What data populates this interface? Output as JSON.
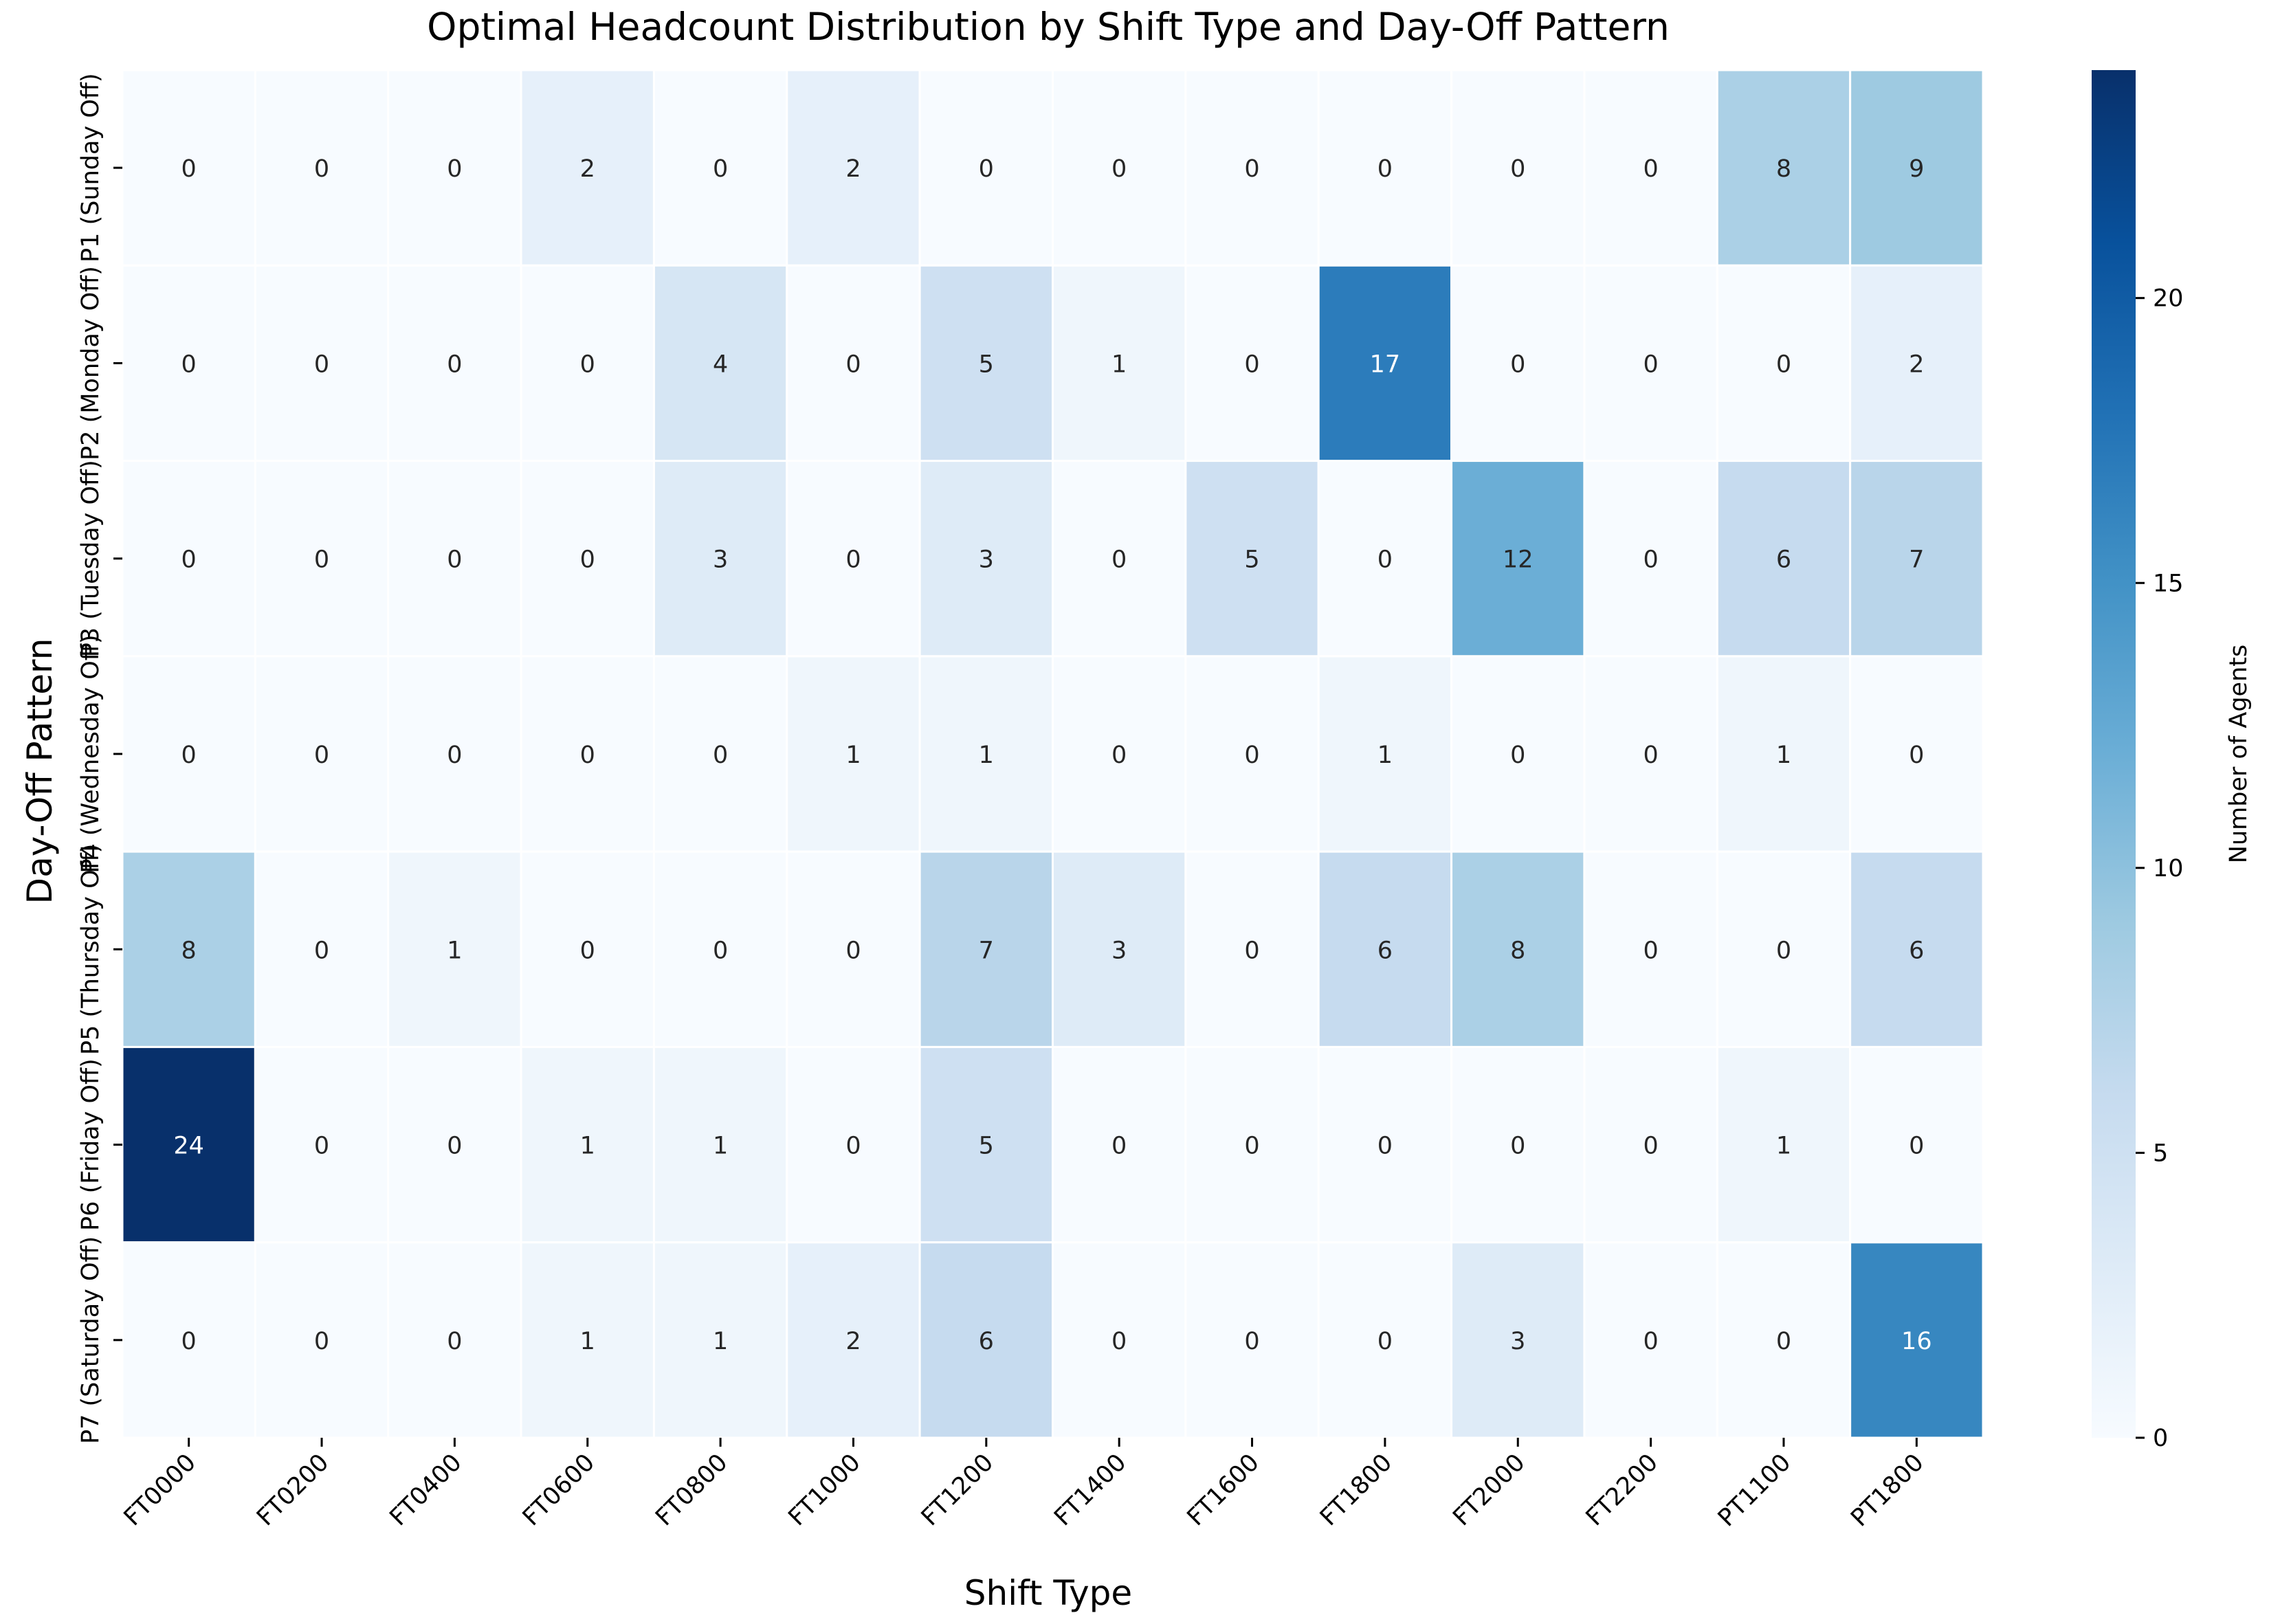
{
  "chart_data": {
    "type": "heatmap",
    "title": "Optimal Headcount Distribution by Shift Type and Day-Off Pattern",
    "xlabel": "Shift Type",
    "ylabel": "Day-Off Pattern",
    "x_categories": [
      "FT0000",
      "FT0200",
      "FT0400",
      "FT0600",
      "FT0800",
      "FT1000",
      "FT1200",
      "FT1400",
      "FT1600",
      "FT1800",
      "FT2000",
      "FT2200",
      "PT1100",
      "PT1800"
    ],
    "y_categories": [
      "P1 (Sunday Off)",
      "P2 (Monday Off)",
      "P3 (Tuesday Off)",
      "P4 (Wednesday Off)",
      "P5 (Thursday Off)",
      "P6 (Friday Off)",
      "P7 (Saturday Off)"
    ],
    "values": [
      [
        0,
        0,
        0,
        2,
        0,
        2,
        0,
        0,
        0,
        0,
        0,
        0,
        8,
        9
      ],
      [
        0,
        0,
        0,
        0,
        4,
        0,
        5,
        1,
        0,
        17,
        0,
        0,
        0,
        2
      ],
      [
        0,
        0,
        0,
        0,
        3,
        0,
        3,
        0,
        5,
        0,
        12,
        0,
        6,
        7
      ],
      [
        0,
        0,
        0,
        0,
        0,
        1,
        1,
        0,
        0,
        1,
        0,
        0,
        1,
        0
      ],
      [
        8,
        0,
        1,
        0,
        0,
        0,
        7,
        3,
        0,
        6,
        8,
        0,
        0,
        6
      ],
      [
        24,
        0,
        0,
        1,
        1,
        0,
        5,
        0,
        0,
        0,
        0,
        0,
        1,
        0
      ],
      [
        0,
        0,
        0,
        1,
        1,
        2,
        6,
        0,
        0,
        0,
        3,
        0,
        0,
        16
      ]
    ],
    "colorbar": {
      "label": "Number of Agents",
      "vmin": 0,
      "vmax": 24,
      "ticks": [
        0,
        5,
        10,
        15,
        20
      ],
      "colormap": "Blues"
    },
    "colors": {
      "cell_border": "#ffffff",
      "text_dark": "#262626",
      "text_light": "#ffffff",
      "axis": "#000000"
    }
  }
}
